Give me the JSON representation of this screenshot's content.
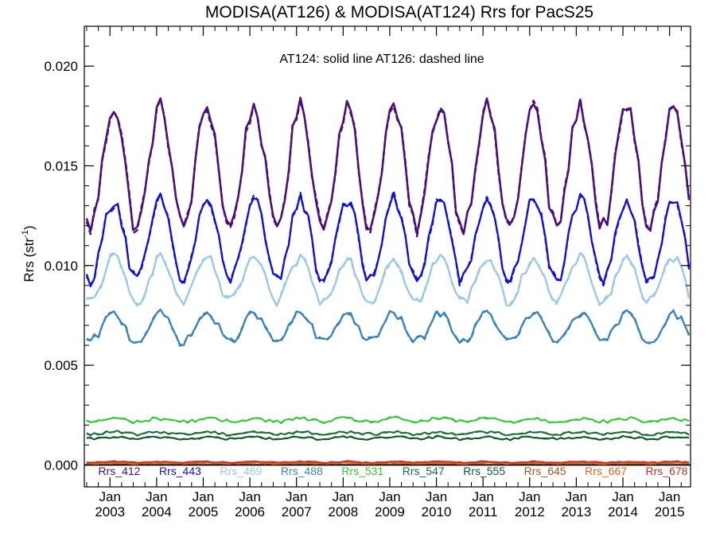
{
  "chart_data": {
    "type": "line",
    "title": "MODISA(AT126) & MODISA(AT124)  Rrs for PacS25",
    "ylabel": "Rrs (str",
    "ylabel_sup": "-1",
    "ylabel_close": ")",
    "annotation": "AT124: solid line   AT126: dashed line",
    "ylim": [
      -0.0011,
      0.022
    ],
    "xlim": [
      2002.45,
      2015.45
    ],
    "yticks": [
      {
        "value": 0.0,
        "label": "0.000"
      },
      {
        "value": 0.005,
        "label": "0.005"
      },
      {
        "value": 0.01,
        "label": "0.010"
      },
      {
        "value": 0.015,
        "label": "0.015"
      },
      {
        "value": 0.02,
        "label": "0.020"
      }
    ],
    "xticks": [
      {
        "value": 2003.0,
        "month": "Jan",
        "year": "2003"
      },
      {
        "value": 2004.0,
        "month": "Jan",
        "year": "2004"
      },
      {
        "value": 2005.0,
        "month": "Jan",
        "year": "2005"
      },
      {
        "value": 2006.0,
        "month": "Jan",
        "year": "2006"
      },
      {
        "value": 2007.0,
        "month": "Jan",
        "year": "2007"
      },
      {
        "value": 2008.0,
        "month": "Jan",
        "year": "2008"
      },
      {
        "value": 2009.0,
        "month": "Jan",
        "year": "2009"
      },
      {
        "value": 2010.0,
        "month": "Jan",
        "year": "2010"
      },
      {
        "value": 2011.0,
        "month": "Jan",
        "year": "2011"
      },
      {
        "value": 2012.0,
        "month": "Jan",
        "year": "2012"
      },
      {
        "value": 2013.0,
        "month": "Jan",
        "year": "2013"
      },
      {
        "value": 2014.0,
        "month": "Jan",
        "year": "2014"
      },
      {
        "value": 2015.0,
        "month": "Jan",
        "year": "2015"
      }
    ],
    "zero_line": true,
    "grid": false,
    "legend_position": "bottom",
    "time_start": 2002.5,
    "time_step": 0.08333,
    "series": [
      {
        "name": "Rrs_412",
        "color": "#4B0F7A",
        "mean": 0.015,
        "amp": 0.003,
        "dip": 0.0004,
        "phase": 0.08,
        "noise": 0.00045,
        "width": 2.5
      },
      {
        "name": "Rrs_443",
        "color": "#1010DD",
        "mean": 0.0113,
        "amp": 0.002,
        "dip": 0.0003,
        "phase": 0.08,
        "noise": 0.00035,
        "width": 2.3
      },
      {
        "name": "Rrs_469",
        "color": "#9CCAE4",
        "mean": 0.0093,
        "amp": 0.0011,
        "dip": 0.0002,
        "phase": 0.08,
        "noise": 0.00025,
        "width": 2.3
      },
      {
        "name": "Rrs_488",
        "color": "#3A86BC",
        "mean": 0.0069,
        "amp": 0.0007,
        "dip": 0.00015,
        "phase": 0.08,
        "noise": 0.0002,
        "width": 2.3
      },
      {
        "name": "Rrs_531",
        "color": "#36C936",
        "mean": 0.00225,
        "amp": 8e-05,
        "dip": 0.0,
        "phase": 0.08,
        "noise": 9e-05,
        "width": 2.0
      },
      {
        "name": "Rrs_547",
        "color": "#17703A",
        "mean": 0.0016,
        "amp": 6e-05,
        "dip": 0.0,
        "phase": 0.08,
        "noise": 7e-05,
        "width": 2.0
      },
      {
        "name": "Rrs_555",
        "color": "#0F5A2C",
        "mean": 0.00135,
        "amp": 5e-05,
        "dip": 0.0,
        "phase": 0.08,
        "noise": 6e-05,
        "width": 2.0
      },
      {
        "name": "Rrs_645",
        "color": "#A9561E",
        "mean": 0.00012,
        "amp": 2e-05,
        "dip": 0.0,
        "phase": 0.08,
        "noise": 3e-05,
        "width": 1.8
      },
      {
        "name": "Rrs_667",
        "color": "#E0661A",
        "mean": 8e-05,
        "amp": 2e-05,
        "dip": 0.0,
        "phase": 0.08,
        "noise": 2e-05,
        "width": 1.8
      },
      {
        "name": "Rrs_678",
        "color": "#C8302A",
        "mean": 0.00015,
        "amp": 2e-05,
        "dip": 0.0,
        "phase": 0.08,
        "noise": 3e-05,
        "width": 1.8
      }
    ]
  }
}
